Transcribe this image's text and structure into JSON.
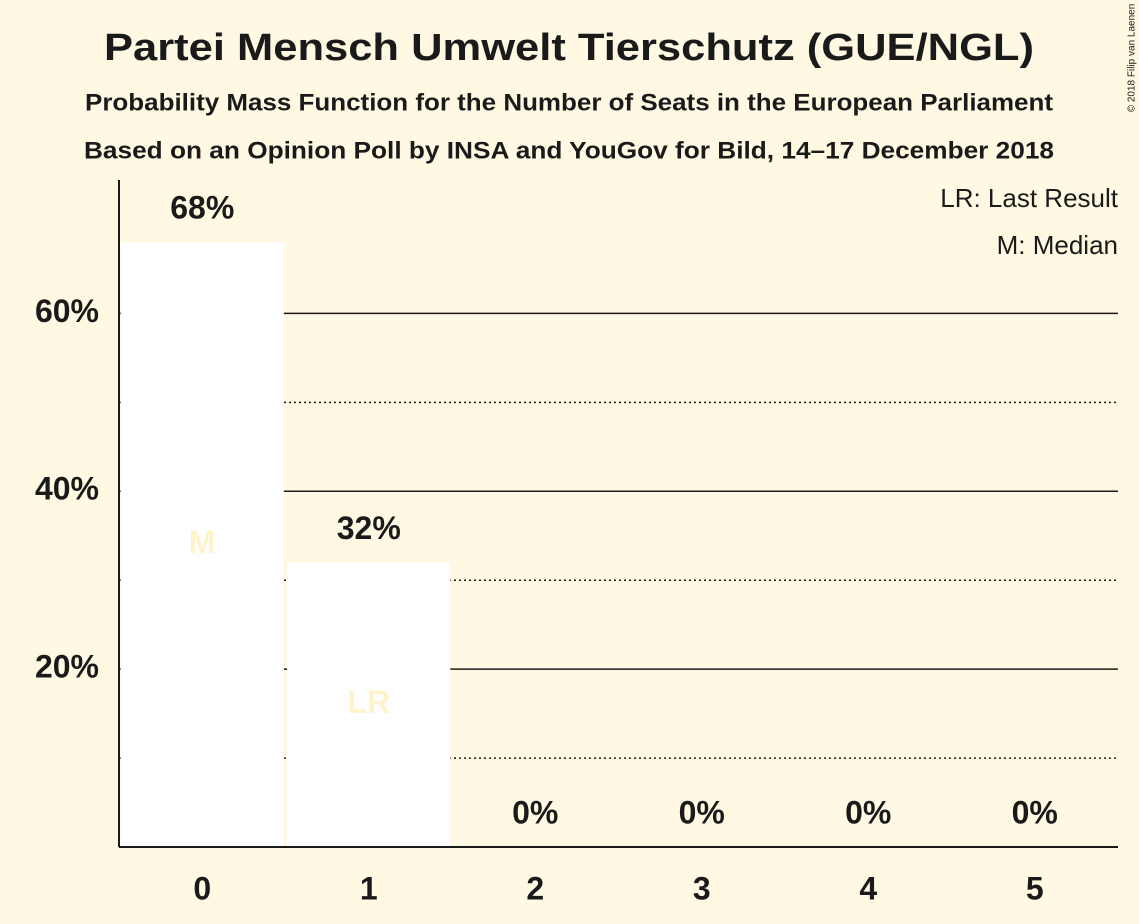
{
  "chart_data": {
    "type": "bar",
    "title": "Partei Mensch Umwelt Tierschutz (GUE/NGL)",
    "subtitle": [
      "Probability Mass Function for the Number of Seats in the European Parliament",
      "Based on an Opinion Poll by INSA and YouGov for Bild, 14–17 December 2018"
    ],
    "copyright": "© 2018 Filip van Laenen",
    "categories": [
      "0",
      "1",
      "2",
      "3",
      "4",
      "5"
    ],
    "values": [
      68,
      32,
      0,
      0,
      0,
      0
    ],
    "value_labels": [
      "68%",
      "32%",
      "0%",
      "0%",
      "0%",
      "0%"
    ],
    "color": "#ffffff",
    "markers": [
      {
        "category": "0",
        "text": "M"
      },
      {
        "category": "1",
        "text": "LR"
      }
    ],
    "legend": [
      "LR: Last Result",
      "M: Median"
    ],
    "ylim": [
      0,
      75
    ],
    "yticks": [
      {
        "value": 20,
        "label": "20%"
      },
      {
        "value": 40,
        "label": "40%"
      },
      {
        "value": 60,
        "label": "60%"
      }
    ],
    "minor_yticks": [
      10,
      30,
      50
    ],
    "grid": true
  }
}
